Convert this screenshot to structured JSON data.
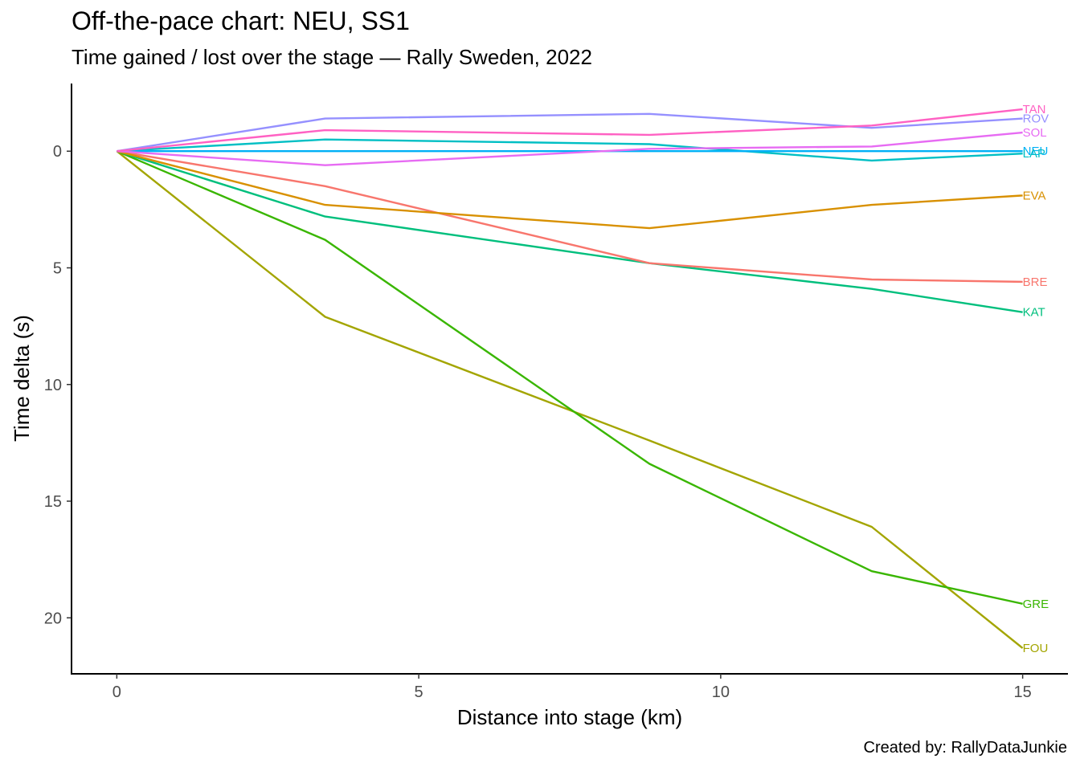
{
  "chart_data": {
    "type": "line",
    "title": "Off-the-pace chart: NEU, SS1",
    "subtitle": "Time gained / lost over the stage — Rally Sweden, 2022",
    "caption": "Created by: RallyDataJunkie",
    "xlabel": "Distance into stage (km)",
    "ylabel": "Time delta (s)",
    "xlim": [
      -0.75,
      15.75
    ],
    "ylim": [
      -2.9,
      22.4
    ],
    "y_reversed": true,
    "x_ticks": [
      0,
      5,
      10,
      15
    ],
    "y_ticks": [
      0,
      5,
      10,
      15,
      20
    ],
    "grid": false,
    "legend": "none (direct end labels)",
    "x": [
      0,
      3.45,
      8.82,
      12.5,
      15
    ],
    "series": [
      {
        "name": "TAN",
        "color": "#FF61C3",
        "values": [
          0,
          -0.9,
          -0.7,
          -1.1,
          -1.8
        ]
      },
      {
        "name": "ROV",
        "color": "#9590FF",
        "values": [
          0,
          -1.4,
          -1.6,
          -1.0,
          -1.4
        ]
      },
      {
        "name": "SOL",
        "color": "#E76BF3",
        "values": [
          0,
          0.6,
          -0.1,
          -0.2,
          -0.8
        ]
      },
      {
        "name": "NEU",
        "color": "#00B0F6",
        "values": [
          0,
          0,
          0,
          0,
          0
        ]
      },
      {
        "name": "LAP",
        "color": "#00BFC4",
        "values": [
          0,
          -0.5,
          -0.3,
          0.4,
          0.1
        ]
      },
      {
        "name": "EVA",
        "color": "#D89000",
        "values": [
          0,
          2.3,
          3.3,
          2.3,
          1.9
        ]
      },
      {
        "name": "BRE",
        "color": "#F8766D",
        "values": [
          0,
          1.5,
          4.8,
          5.5,
          5.6
        ]
      },
      {
        "name": "KAT",
        "color": "#00BF7D",
        "values": [
          0,
          2.8,
          4.8,
          5.9,
          6.9
        ]
      },
      {
        "name": "GRE",
        "color": "#39B600",
        "values": [
          0,
          3.8,
          13.4,
          18.0,
          19.4
        ]
      },
      {
        "name": "FOU",
        "color": "#A3A500",
        "values": [
          0,
          7.1,
          12.4,
          16.1,
          21.3
        ]
      }
    ]
  }
}
